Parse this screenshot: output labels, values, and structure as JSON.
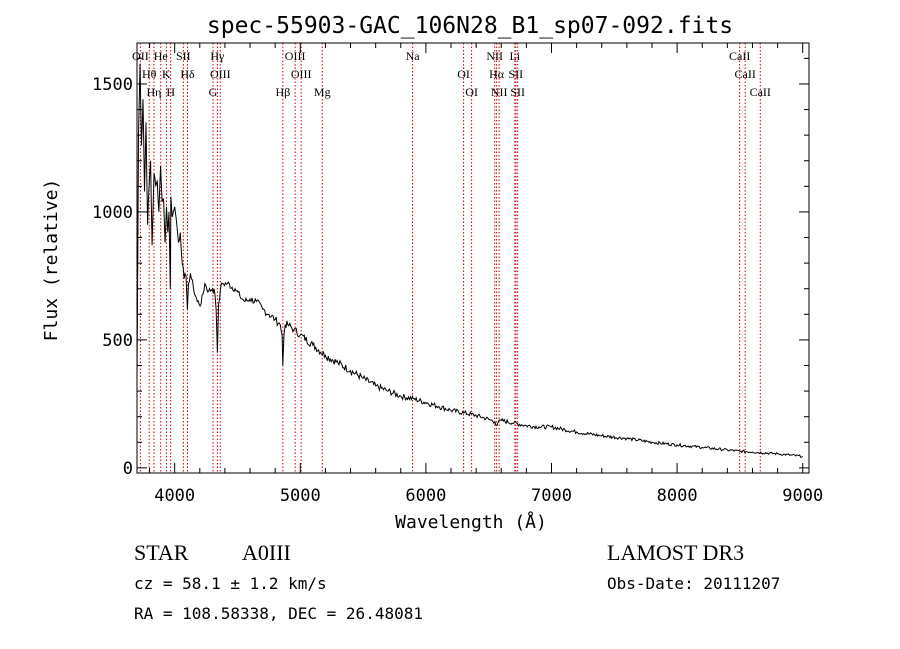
{
  "chart_data": {
    "type": "line",
    "title": "spec-55903-GAC_106N28_B1_sp07-092.fits",
    "xlabel": "Wavelength (Å)",
    "ylabel": "Flux (relative)",
    "xlim": [
      3700,
      9050
    ],
    "ylim": [
      -20,
      1660
    ],
    "xticks": [
      4000,
      5000,
      6000,
      7000,
      8000,
      9000
    ],
    "yticks": [
      0,
      500,
      1000,
      1500
    ],
    "grid": false,
    "legend": "none",
    "series": [
      {
        "name": "flux",
        "x": [
          3700,
          3712,
          3724,
          3736,
          3748,
          3760,
          3772,
          3784,
          3796,
          3808,
          3820,
          3835,
          3850,
          3862,
          3874,
          3888,
          3900,
          3912,
          3924,
          3935,
          3945,
          3955,
          3965,
          3970,
          3980,
          3990,
          4000,
          4015,
          4030,
          4045,
          4060,
          4075,
          4090,
          4101,
          4110,
          4125,
          4150,
          4180,
          4210,
          4240,
          4270,
          4300,
          4320,
          4330,
          4340,
          4350,
          4365,
          4380,
          4420,
          4480,
          4520,
          4560,
          4600,
          4650,
          4700,
          4750,
          4800,
          4840,
          4855,
          4861,
          4870,
          4880,
          4900,
          4950,
          5000,
          5100,
          5200,
          5300,
          5400,
          5500,
          5600,
          5700,
          5800,
          5900,
          6000,
          6100,
          6200,
          6300,
          6400,
          6500,
          6550,
          6563,
          6575,
          6600,
          6700,
          6800,
          6900,
          7000,
          7200,
          7400,
          7600,
          7800,
          8000,
          8200,
          8400,
          8500,
          8600,
          8800,
          9000
        ],
        "values": [
          350,
          1300,
          1580,
          1260,
          1440,
          1080,
          1350,
          950,
          1100,
          1200,
          870,
          1150,
          1100,
          1120,
          1000,
          1180,
          1040,
          1050,
          880,
          1020,
          920,
          1000,
          700,
          1060,
          980,
          1000,
          1020,
          960,
          880,
          920,
          800,
          740,
          750,
          620,
          720,
          760,
          700,
          650,
          640,
          720,
          690,
          700,
          680,
          620,
          450,
          640,
          700,
          720,
          720,
          700,
          670,
          650,
          660,
          650,
          620,
          600,
          580,
          560,
          520,
          400,
          520,
          560,
          560,
          540,
          520,
          480,
          440,
          410,
          380,
          350,
          320,
          300,
          280,
          270,
          255,
          240,
          225,
          215,
          205,
          190,
          180,
          165,
          178,
          185,
          175,
          165,
          160,
          160,
          140,
          125,
          115,
          100,
          90,
          80,
          70,
          65,
          62,
          55,
          45
        ]
      }
    ],
    "lines": [
      {
        "name": "OII",
        "wavelength": 3727
      },
      {
        "name": "Hθ",
        "wavelength": 3797
      },
      {
        "name": "Hη",
        "wavelength": 3835
      },
      {
        "name": "He",
        "wavelength": 3889
      },
      {
        "name": "K",
        "wavelength": 3934
      },
      {
        "name": "H",
        "wavelength": 3968
      },
      {
        "name": "SII",
        "wavelength": 4069
      },
      {
        "name": "Hδ",
        "wavelength": 4102
      },
      {
        "name": "G",
        "wavelength": 4305
      },
      {
        "name": "Hγ",
        "wavelength": 4340
      },
      {
        "name": "OIII",
        "wavelength": 4363
      },
      {
        "name": "Hβ",
        "wavelength": 4861
      },
      {
        "name": "OIII",
        "wavelength": 4959
      },
      {
        "name": "OIII",
        "wavelength": 5007
      },
      {
        "name": "Mg",
        "wavelength": 5175
      },
      {
        "name": "Na",
        "wavelength": 5894
      },
      {
        "name": "OI",
        "wavelength": 6300
      },
      {
        "name": "OI",
        "wavelength": 6364
      },
      {
        "name": "NII",
        "wavelength": 6548
      },
      {
        "name": "Hα",
        "wavelength": 6563
      },
      {
        "name": "NII",
        "wavelength": 6583
      },
      {
        "name": "Li",
        "wavelength": 6708
      },
      {
        "name": "SII",
        "wavelength": 6716
      },
      {
        "name": "SII",
        "wavelength": 6731
      },
      {
        "name": "CaII",
        "wavelength": 8498
      },
      {
        "name": "CaII",
        "wavelength": 8542
      },
      {
        "name": "CaII",
        "wavelength": 8662
      }
    ]
  },
  "colors": {
    "axis": "#000000",
    "spectrum": "#000000",
    "line_marker": "#cc0000",
    "background": "#ffffff"
  },
  "info": {
    "class_label": "STAR",
    "subclass": "A0III",
    "survey": "LAMOST DR3",
    "redshift_text": "cz = 58.1 ± 1.2 km/s",
    "obs_date_text": "Obs-Date: 20111207",
    "coords_text": "RA = 108.58338, DEC =  26.48081"
  }
}
